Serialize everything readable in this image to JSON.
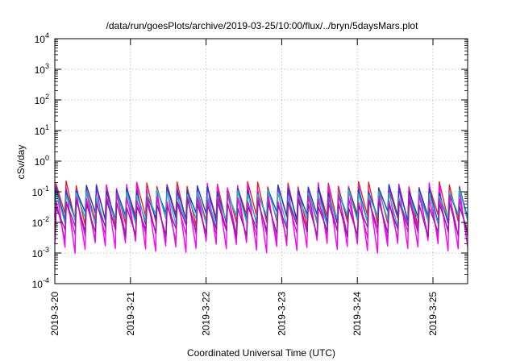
{
  "chart_data": {
    "type": "line",
    "title": "/data/run/goesPlots/archive/2019-03-25/10:00/flux/../bryn/5daysMars.plot",
    "xlabel": "Coordinated Universal Time (UTC)",
    "ylabel": "cSv/day",
    "x_range": [
      "2019-03-20T00:00",
      "2019-03-25T11:00"
    ],
    "x_ticks": [
      "2019-3-20",
      "2019-3-21",
      "2019-3-22",
      "2019-3-23",
      "2019-3-24",
      "2019-3-25"
    ],
    "y_scale": "log",
    "ylim": [
      0.0001,
      10000
    ],
    "y_ticks": [
      {
        "base": "10",
        "exp": "-4"
      },
      {
        "base": "10",
        "exp": "-3"
      },
      {
        "base": "10",
        "exp": "-2"
      },
      {
        "base": "10",
        "exp": "-1"
      },
      {
        "base": "10",
        "exp": "0"
      },
      {
        "base": "10",
        "exp": "1"
      },
      {
        "base": "10",
        "exp": "2"
      },
      {
        "base": "10",
        "exp": "3"
      },
      {
        "base": "10",
        "exp": "4"
      }
    ],
    "grid": true,
    "pulse_period_hours": 3.2,
    "series": [
      {
        "color": "#e8221f",
        "peak": 0.16,
        "trough": 0.012
      },
      {
        "color": "#ff00ff",
        "peak": 0.14,
        "trough": 0.0016
      },
      {
        "color": "#1e3ccf",
        "peak": 0.12,
        "trough": 0.014
      },
      {
        "color": "#20b8b8",
        "peak": 0.085,
        "trough": 0.011
      },
      {
        "color": "#d01ad0",
        "peak": 0.06,
        "trough": 0.0035
      },
      {
        "color": "#9a1aa8",
        "peak": 0.04,
        "trough": 0.005
      }
    ]
  }
}
